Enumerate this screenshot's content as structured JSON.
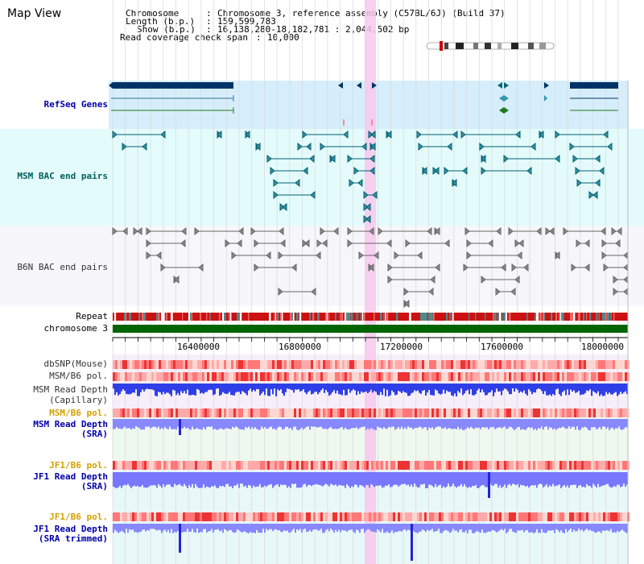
{
  "page_title": "Map View",
  "info": {
    "chromosome_key": "Chromosome",
    "chromosome_value": "Chromosome 3, reference assembly (C57BL/6J) (Build 37)",
    "length_key": "Length (b.p.)",
    "length_value": "159,599,783",
    "show_key": "Show (b.p.)",
    "show_value": "16,138,280-18,182,781 : 2,044,502 bp",
    "coverage_key": "Read coverage check span",
    "coverage_value": "10,000"
  },
  "tracks": {
    "refseq": "RefSeq Genes",
    "msm_bac": "MSM BAC end pairs",
    "b6n_bac": "B6N BAC end pairs",
    "repeat": "Repeat",
    "chromosome": "chromosome 3",
    "dbsnp": "dbSNP(Mouse)",
    "msm_b6_pol_1": "MSM/B6 pol.",
    "msm_read_depth_cap_1": "MSM Read Depth",
    "msm_read_depth_cap_2": "(Capillary)",
    "msm_b6_pol_2": "MSM/B6 pol.",
    "msm_read_depth_sra_1": "MSM Read Depth",
    "msm_read_depth_sra_2": "(SRA)",
    "jf1_b6_pol_1": "JF1/B6 pol.",
    "jf1_read_depth_1": "JF1 Read Depth",
    "jf1_read_depth_2": "(SRA)",
    "jf1_b6_pol_2": "JF1/B6 pol.",
    "jf1_trimmed_1": "JF1 Read Depth",
    "jf1_trimmed_2": "(SRA trimmed)"
  },
  "axis": {
    "ticks": [
      "16400000",
      "16800000",
      "17200000",
      "17600000",
      "18000000"
    ]
  },
  "colors": {
    "refseq_bg": "#d6eefb",
    "msm_bg": "#e4fbfb",
    "b6n_bg": "#f4f4fb",
    "highlight": "#f8c8ec",
    "navy": "#003366",
    "chromosome_green": "#006400",
    "depth_blue": "#3333ee",
    "depth_light": "#8888ff"
  }
}
